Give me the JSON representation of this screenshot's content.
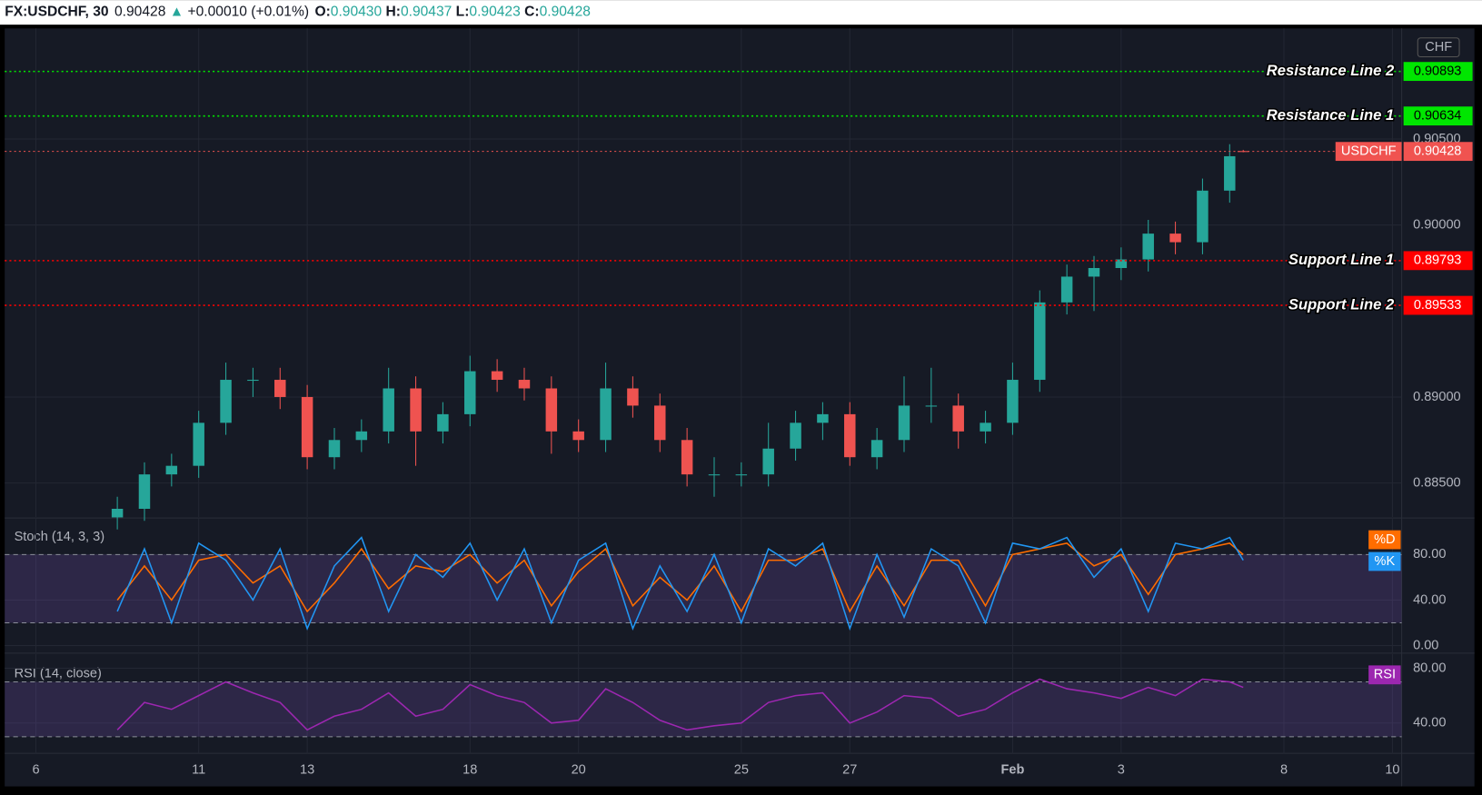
{
  "header": {
    "symbol": "FX:USDCHF, 30",
    "last": "0.90428",
    "arrow": "▲",
    "change": "+0.00010 (+0.01%)",
    "o_label": "O:",
    "o_value": "0.90430",
    "h_label": "H:",
    "h_value": "0.90437",
    "l_label": "L:",
    "l_value": "0.90423",
    "c_label": "C:",
    "c_value": "0.90428"
  },
  "chart_data": {
    "type": "candlestick",
    "currency": "CHF",
    "xlim": [
      -0.575,
      25.17
    ],
    "xticks": [
      {
        "value": 0,
        "label": "6"
      },
      {
        "value": 3,
        "label": "11"
      },
      {
        "value": 5,
        "label": "13"
      },
      {
        "value": 8,
        "label": "18"
      },
      {
        "value": 10,
        "label": "20"
      },
      {
        "value": 13,
        "label": "25"
      },
      {
        "value": 15,
        "label": "27"
      },
      {
        "value": 18,
        "label": "Feb"
      },
      {
        "value": 20,
        "label": "3"
      },
      {
        "value": 23,
        "label": "8"
      },
      {
        "value": 25,
        "label": "10"
      }
    ],
    "ylim": [
      0.88302,
      0.91143
    ],
    "yticks": [
      {
        "value": 0.885,
        "label": "0.88500"
      },
      {
        "value": 0.89,
        "label": "0.89000"
      },
      {
        "value": 0.9,
        "label": "0.90000"
      },
      {
        "value": 0.905,
        "label": "0.90500"
      }
    ],
    "grid": true,
    "up_color": "#26a69a",
    "down_color": "#ef5350",
    "x": [
      1.5,
      2,
      2.5,
      3,
      3.5,
      4,
      4.5,
      5,
      5.5,
      6,
      6.5,
      7,
      7.5,
      8,
      8.5,
      9,
      9.5,
      10,
      10.5,
      11,
      11.5,
      12,
      12.5,
      13,
      13.5,
      14,
      14.5,
      15,
      15.5,
      16,
      16.5,
      17,
      17.5,
      18,
      18.5,
      19,
      19.5,
      20,
      20.5,
      21,
      21.5,
      22,
      22.25
    ],
    "open": [
      0.883,
      0.8835,
      0.8855,
      0.886,
      0.8885,
      0.891,
      0.891,
      0.89,
      0.8865,
      0.8875,
      0.888,
      0.8905,
      0.888,
      0.889,
      0.8915,
      0.891,
      0.8905,
      0.888,
      0.8875,
      0.8905,
      0.8895,
      0.8875,
      0.8855,
      0.8855,
      0.8855,
      0.887,
      0.8885,
      0.889,
      0.8865,
      0.8875,
      0.8895,
      0.8895,
      0.888,
      0.8885,
      0.891,
      0.8955,
      0.897,
      0.8975,
      0.898,
      0.8995,
      0.899,
      0.902,
      0.9043
    ],
    "high": [
      0.8842,
      0.8862,
      0.8867,
      0.8892,
      0.892,
      0.8917,
      0.8917,
      0.8907,
      0.8882,
      0.8887,
      0.8917,
      0.8912,
      0.8897,
      0.8924,
      0.8922,
      0.8917,
      0.8912,
      0.8887,
      0.892,
      0.8912,
      0.8902,
      0.8882,
      0.8865,
      0.8862,
      0.8885,
      0.8892,
      0.8897,
      0.8897,
      0.8882,
      0.8912,
      0.8917,
      0.8902,
      0.8892,
      0.892,
      0.8962,
      0.8977,
      0.8982,
      0.8987,
      0.9003,
      0.9002,
      0.9027,
      0.9047,
      0.90437
    ],
    "low": [
      0.8823,
      0.8828,
      0.8848,
      0.8853,
      0.8878,
      0.89,
      0.8893,
      0.8858,
      0.8858,
      0.8868,
      0.8873,
      0.886,
      0.8873,
      0.8883,
      0.8903,
      0.8898,
      0.8867,
      0.8868,
      0.8868,
      0.8888,
      0.8868,
      0.8848,
      0.8842,
      0.8848,
      0.8848,
      0.8863,
      0.8875,
      0.886,
      0.8858,
      0.8868,
      0.8885,
      0.887,
      0.8873,
      0.8878,
      0.8903,
      0.8948,
      0.895,
      0.8968,
      0.8973,
      0.8983,
      0.8983,
      0.9013,
      0.90423
    ],
    "close": [
      0.8835,
      0.8855,
      0.886,
      0.8885,
      0.891,
      0.891,
      0.89,
      0.8865,
      0.8875,
      0.888,
      0.8905,
      0.888,
      0.889,
      0.8915,
      0.891,
      0.8905,
      0.888,
      0.8875,
      0.8905,
      0.8895,
      0.8875,
      0.8855,
      0.8855,
      0.8855,
      0.887,
      0.8885,
      0.889,
      0.8865,
      0.8875,
      0.8895,
      0.8895,
      0.888,
      0.8885,
      0.891,
      0.8955,
      0.897,
      0.8975,
      0.898,
      0.8995,
      0.899,
      0.902,
      0.904,
      0.90428
    ],
    "levels": [
      {
        "name": "Resistance Line 2",
        "value": 0.90893,
        "color": "#00e600",
        "text_color": "#000000",
        "kind": "line"
      },
      {
        "name": "Resistance Line 1",
        "value": 0.90634,
        "color": "#00e600",
        "text_color": "#000000",
        "kind": "line"
      },
      {
        "name": "USDCHF",
        "value": 0.90428,
        "color": "#f05350",
        "text_color": "#ffffff",
        "kind": "current"
      },
      {
        "name": "Support Line 1",
        "value": 0.89793,
        "color": "#ff0000",
        "text_color": "#ffffff",
        "kind": "line"
      },
      {
        "name": "Support Line 2",
        "value": 0.89533,
        "color": "#ff0000",
        "text_color": "#ffffff",
        "kind": "line"
      }
    ],
    "stoch": {
      "title": "Stoch (14, 3, 3)",
      "ylim": [
        -5.8,
        111.3
      ],
      "yticks": [
        {
          "value": 0,
          "label": "0.00"
        },
        {
          "value": 40,
          "label": "40.00"
        },
        {
          "value": 80,
          "label": "80.00"
        }
      ],
      "band": [
        20,
        80
      ],
      "series": [
        {
          "name": "%K",
          "color": "#2196f3",
          "values": [
            30,
            85,
            20,
            90,
            75,
            40,
            85,
            15,
            70,
            95,
            30,
            80,
            60,
            90,
            40,
            85,
            20,
            75,
            90,
            15,
            70,
            30,
            80,
            20,
            85,
            70,
            90,
            15,
            80,
            25,
            85,
            70,
            20,
            90,
            85,
            95,
            60,
            85,
            30,
            90,
            85,
            95,
            75
          ]
        },
        {
          "name": "%D",
          "color": "#ff6d00",
          "values": [
            40,
            70,
            40,
            75,
            80,
            55,
            70,
            30,
            55,
            85,
            50,
            70,
            65,
            80,
            55,
            75,
            35,
            65,
            85,
            35,
            60,
            40,
            70,
            30,
            75,
            75,
            85,
            30,
            70,
            35,
            75,
            75,
            35,
            80,
            85,
            90,
            70,
            80,
            45,
            80,
            85,
            90,
            80
          ]
        }
      ]
    },
    "rsi": {
      "title": "RSI (14, close)",
      "ylim": [
        17.9,
        90.3
      ],
      "yticks": [
        {
          "value": 40,
          "label": "40.00"
        },
        {
          "value": 80,
          "label": "80.00"
        }
      ],
      "band": [
        30,
        70
      ],
      "series": [
        {
          "name": "RSI",
          "color": "#9c27b0",
          "values": [
            35,
            55,
            50,
            60,
            70,
            62,
            55,
            35,
            45,
            50,
            62,
            45,
            50,
            68,
            60,
            55,
            40,
            42,
            65,
            55,
            42,
            35,
            38,
            40,
            55,
            60,
            62,
            40,
            48,
            60,
            58,
            45,
            50,
            62,
            72,
            65,
            62,
            58,
            66,
            60,
            72,
            70,
            66
          ]
        }
      ]
    }
  }
}
